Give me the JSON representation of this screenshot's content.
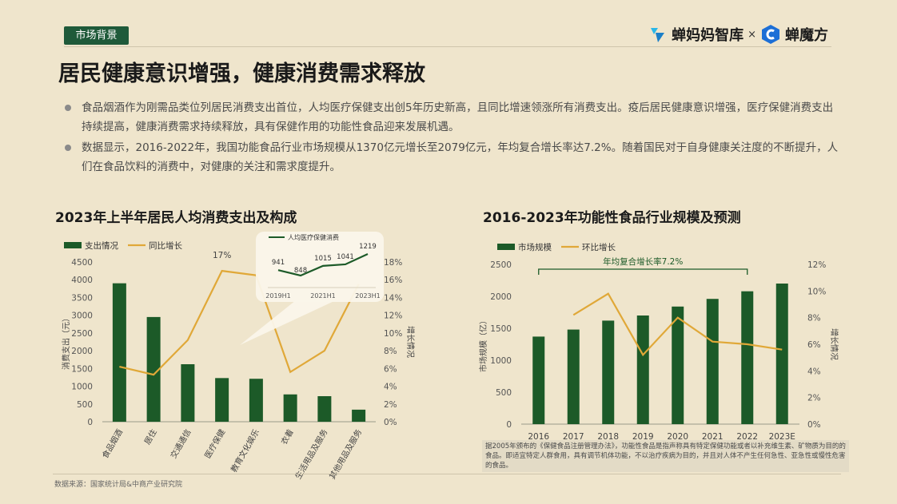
{
  "header": {
    "tag": "市场背景",
    "brand_left": "蝉妈妈智库",
    "brand_sep": "×",
    "brand_right": "蝉魔方"
  },
  "title": "居民健康意识增强，健康消费需求释放",
  "bullets": [
    "食品烟酒作为刚需品类位列居民消费支出首位，人均医疗保健支出创5年历史新高，且同比增速领涨所有消费支出。疫后居民健康意识增强，医疗保健消费支出持续提高，健康消费需求持续释放，具有保健作用的功能性食品迎来发展机遇。",
    "数据显示，2016-2022年，我国功能食品行业市场规模从1370亿元增长至2079亿元，年均复合增长率达7.2%。随着国民对于自身健康关注度的不断提升，人们在食品饮料的消费中，对健康的关注和需求度提升。"
  ],
  "colors": {
    "bar": "#1c5a28",
    "line": "#e0a838",
    "tag_bg": "#1f5a3a",
    "bg": "#efe5cc"
  },
  "chart_data": [
    {
      "type": "bar",
      "title": "2023年上半年居民人均消费支出及构成",
      "categories": [
        "食品烟酒",
        "居住",
        "交通通信",
        "医疗保健",
        "教育文化娱乐",
        "衣着",
        "生活用品及服务",
        "其他用品及服务"
      ],
      "series": [
        {
          "name": "支出情况",
          "type": "bar",
          "axis": "left",
          "values": [
            3900,
            2950,
            1620,
            1230,
            1210,
            770,
            720,
            340
          ]
        },
        {
          "name": "同比增长",
          "type": "line",
          "axis": "right",
          "values": [
            6.2,
            5.3,
            9.2,
            17.0,
            16.5,
            5.6,
            8.0,
            15.5
          ]
        }
      ],
      "ylabel": "消费支出（元）",
      "y2label": "增长情况",
      "ylim": [
        0,
        4500
      ],
      "y2lim": [
        0,
        18
      ],
      "yticks": [
        "0",
        "500",
        "1000",
        "1500",
        "2000",
        "2500",
        "3000",
        "3500",
        "4000",
        "4500"
      ],
      "y2ticks": [
        "0%",
        "2%",
        "4%",
        "6%",
        "8%",
        "10%",
        "12%",
        "14%",
        "16%",
        "18%"
      ],
      "annotation": "17%",
      "legend": "top-left",
      "inset": {
        "type": "line",
        "series_name": "人均医疗保健消费",
        "x": [
          "2019H1",
          "",
          "2021H1",
          "",
          "2023H1"
        ],
        "values": [
          941,
          848,
          1015,
          1041,
          1219
        ],
        "labels": [
          "941",
          "848",
          "1015",
          "1041",
          "1219"
        ]
      }
    },
    {
      "type": "bar",
      "title": "2016-2023年功能性食品行业规模及预测",
      "categories": [
        "2016",
        "2017",
        "2018",
        "2019",
        "2020",
        "2021",
        "2022",
        "2023E"
      ],
      "series": [
        {
          "name": "市场规模",
          "type": "bar",
          "axis": "left",
          "values": [
            1370,
            1480,
            1620,
            1700,
            1840,
            1960,
            2079,
            2200
          ]
        },
        {
          "name": "环比增长",
          "type": "line",
          "axis": "right",
          "values": [
            null,
            8.2,
            9.8,
            5.2,
            8.0,
            6.2,
            6.0,
            5.6
          ]
        }
      ],
      "ylabel": "市场规模（亿）",
      "y2label": "增长情况",
      "ylim": [
        0,
        2500
      ],
      "y2lim": [
        0,
        12
      ],
      "yticks": [
        "0",
        "500",
        "1000",
        "1500",
        "2000",
        "2500"
      ],
      "y2ticks": [
        "0%",
        "2%",
        "4%",
        "6%",
        "8%",
        "10%",
        "12%"
      ],
      "annotation": "年均复合增长率7.2%",
      "legend": "top-left"
    }
  ],
  "note": "据2005年颁布的《保健食品注册管理办法》，功能性食品是指声称具有特定保健功能或者以补充维生素、矿物质为目的的食品。即适宜特定人群食用，具有调节机体功能，不以治疗疾病为目的，并且对人体不产生任何急性、亚急性或慢性危害的食品。",
  "source": "数据来源：国家统计局&中商产业研究院"
}
